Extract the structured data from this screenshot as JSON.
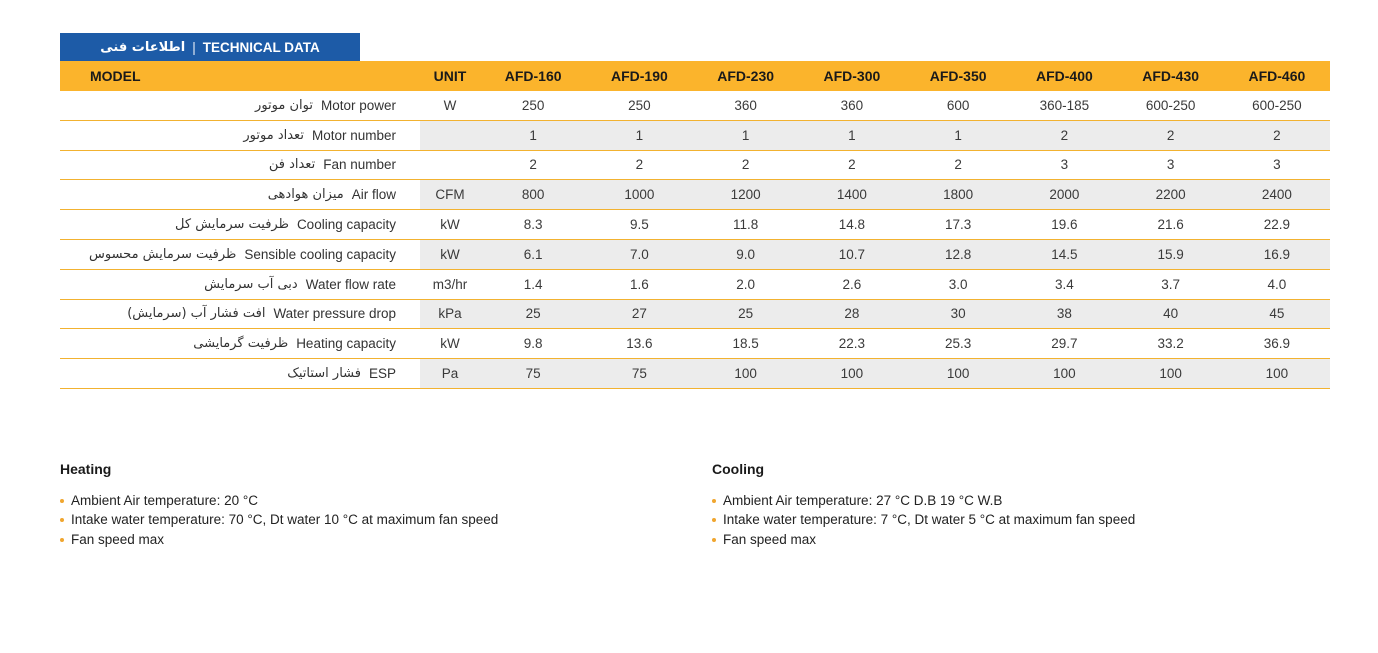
{
  "header": {
    "title_fa": "اطلاعات فنی",
    "separator": "|",
    "title_en": "TECHNICAL DATA"
  },
  "table": {
    "model_header": "MODEL",
    "unit_header": "UNIT",
    "models": [
      "AFD-160",
      "AFD-190",
      "AFD-230",
      "AFD-300",
      "AFD-350",
      "AFD-400",
      "AFD-430",
      "AFD-460"
    ],
    "rows": [
      {
        "label_fa": "توان موتور",
        "label_en": "Motor power",
        "unit": "W",
        "values": [
          "250",
          "250",
          "360",
          "360",
          "600",
          "360-185",
          "600-250",
          "600-250"
        ]
      },
      {
        "label_fa": "تعداد موتور",
        "label_en": "Motor number",
        "unit": "",
        "values": [
          "1",
          "1",
          "1",
          "1",
          "1",
          "2",
          "2",
          "2"
        ]
      },
      {
        "label_fa": "تعداد فن",
        "label_en": "Fan number",
        "unit": "",
        "values": [
          "2",
          "2",
          "2",
          "2",
          "2",
          "3",
          "3",
          "3"
        ]
      },
      {
        "label_fa": "میزان هوادهی",
        "label_en": "Air flow",
        "unit": "CFM",
        "values": [
          "800",
          "1000",
          "1200",
          "1400",
          "1800",
          "2000",
          "2200",
          "2400"
        ]
      },
      {
        "label_fa": "ظرفیت سرمایش کل",
        "label_en": "Cooling capacity",
        "unit": "kW",
        "values": [
          "8.3",
          "9.5",
          "11.8",
          "14.8",
          "17.3",
          "19.6",
          "21.6",
          "22.9"
        ]
      },
      {
        "label_fa": "ظرفیت سرمایش محسوس",
        "label_en": "Sensible cooling capacity",
        "unit": "kW",
        "values": [
          "6.1",
          "7.0",
          "9.0",
          "10.7",
          "12.8",
          "14.5",
          "15.9",
          "16.9"
        ]
      },
      {
        "label_fa": "دبی آب سرمایش",
        "label_en": "Water flow rate",
        "unit": "m3/hr",
        "values": [
          "1.4",
          "1.6",
          "2.0",
          "2.6",
          "3.0",
          "3.4",
          "3.7",
          "4.0"
        ]
      },
      {
        "label_fa": "افت فشار آب (سرمایش)",
        "label_en": "Water pressure drop",
        "unit": "kPa",
        "values": [
          "25",
          "27",
          "25",
          "28",
          "30",
          "38",
          "40",
          "45"
        ]
      },
      {
        "label_fa": "ظرفیت گرمایشی",
        "label_en": "Heating capacity",
        "unit": "kW",
        "values": [
          "9.8",
          "13.6",
          "18.5",
          "22.3",
          "25.3",
          "29.7",
          "33.2",
          "36.9"
        ]
      },
      {
        "label_fa": "فشار استاتیک",
        "label_en": "ESP",
        "unit": "Pa",
        "values": [
          "75",
          "75",
          "100",
          "100",
          "100",
          "100",
          "100",
          "100"
        ]
      }
    ]
  },
  "notes": {
    "heating": {
      "title": "Heating",
      "bullets": [
        "Ambient Air temperature: 20 °C",
        "Intake water temperature: 70 °C, Dt water 10 °C at maximum fan speed",
        "Fan speed max"
      ]
    },
    "cooling": {
      "title": "Cooling",
      "bullets": [
        "Ambient Air temperature: 27 °C D.B 19 °C W.B",
        "Intake water temperature: 7 °C, Dt water 5 °C at maximum fan speed",
        "Fan speed max"
      ]
    }
  },
  "colors": {
    "brand_blue": "#1d5ba7",
    "brand_yellow": "#fbb42c",
    "line_yellow": "#f2b230",
    "row_gray": "#ececec",
    "bullet_orange": "#f0a62f"
  }
}
